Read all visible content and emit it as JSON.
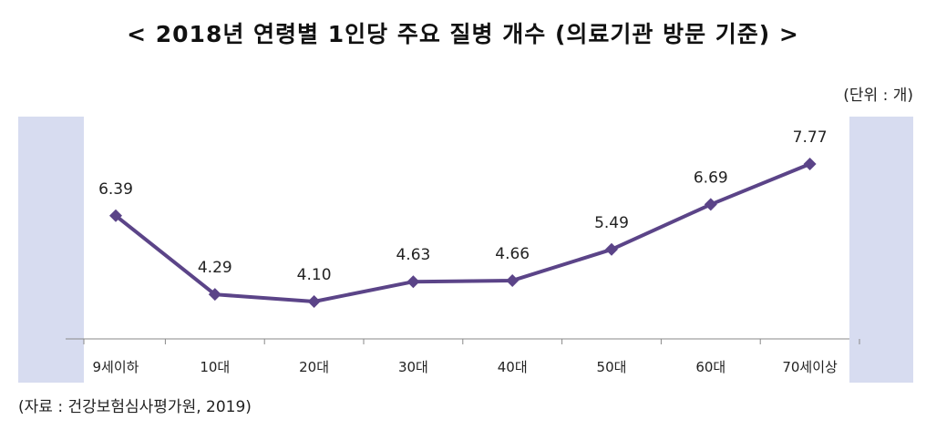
{
  "header": {
    "title": "< 2018년 연령별 1인당 주요 질병 개수 (의료기관 방문 기준) >",
    "unit": "(단위 : 개)"
  },
  "footer": {
    "source": "(자료 : 건강보험심사평가원, 2019)"
  },
  "colors": {
    "line": "#5b4488",
    "side_band": "#d7dcf0",
    "axis": "#888888"
  },
  "chart_data": {
    "type": "line",
    "title": "< 2018년 연령별 1인당 주요 질병 개수 (의료기관 방문 기준) >",
    "xlabel": "",
    "ylabel": "",
    "unit": "(단위 : 개)",
    "categories": [
      "9세이하",
      "10대",
      "20대",
      "30대",
      "40대",
      "50대",
      "60대",
      "70세이상"
    ],
    "values": [
      6.39,
      4.29,
      4.1,
      4.63,
      4.66,
      5.49,
      6.69,
      7.77
    ],
    "value_labels": [
      "6.39",
      "4.29",
      "4.10",
      "4.63",
      "4.66",
      "5.49",
      "6.69",
      "7.77"
    ],
    "marker": "diamond",
    "grid": false,
    "legend": "none"
  }
}
